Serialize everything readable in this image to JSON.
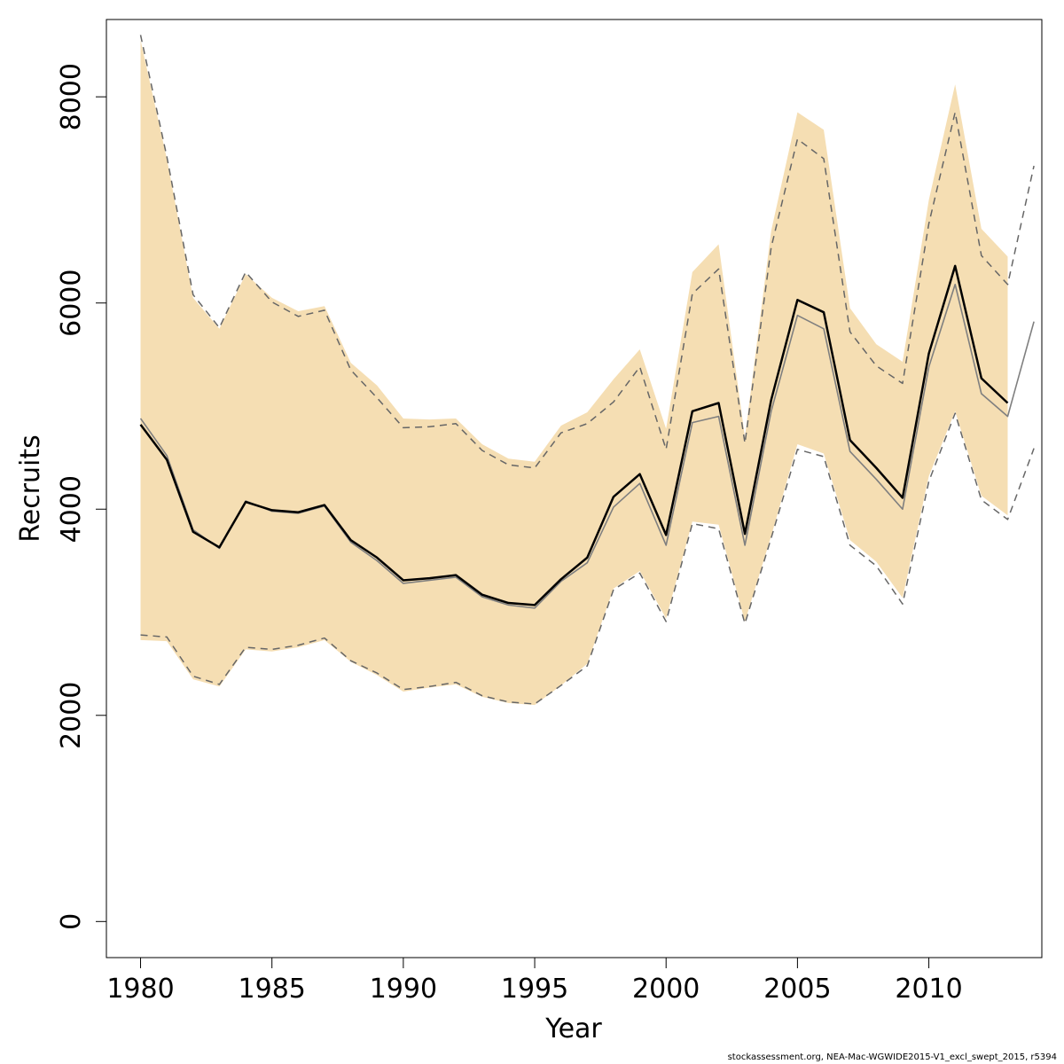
{
  "chart_data": {
    "type": "line",
    "title": "",
    "xlabel": "Year",
    "ylabel": "Recruits",
    "xlim": [
      1978.7,
      2014.3
    ],
    "ylim": [
      -350,
      8750
    ],
    "x_ticks": [
      1980,
      1985,
      1990,
      1995,
      2000,
      2005,
      2010
    ],
    "y_ticks": [
      0,
      2000,
      4000,
      6000,
      8000
    ],
    "grid": false,
    "legend": "none",
    "colors": {
      "band": "#f5deb3",
      "estimate": "#000000",
      "previous": "#7f7f7f",
      "previous_ci": "#666666"
    },
    "band": {
      "x": [
        1980,
        1981,
        1982,
        1983,
        1984,
        1985,
        1986,
        1987,
        1988,
        1989,
        1990,
        1991,
        1992,
        1993,
        1994,
        1995,
        1996,
        1997,
        1998,
        1999,
        2000,
        2001,
        2002,
        2003,
        2004,
        2005,
        2006,
        2007,
        2008,
        2009,
        2010,
        2011,
        2012,
        2013
      ],
      "lower": [
        2730,
        2720,
        2350,
        2280,
        2640,
        2620,
        2660,
        2730,
        2520,
        2390,
        2230,
        2270,
        2300,
        2180,
        2120,
        2100,
        2290,
        2500,
        3230,
        3400,
        2940,
        3880,
        3850,
        2910,
        3740,
        4630,
        4540,
        3700,
        3490,
        3140,
        4320,
        4950,
        4130,
        3940
      ],
      "upper": [
        8550,
        7400,
        6050,
        5750,
        6280,
        6050,
        5920,
        5970,
        5420,
        5200,
        4880,
        4870,
        4880,
        4630,
        4490,
        4460,
        4810,
        4940,
        5260,
        5550,
        4780,
        6300,
        6570,
        4700,
        6700,
        7850,
        7680,
        5950,
        5600,
        5430,
        7000,
        8120,
        6720,
        6450
      ]
    },
    "series": [
      {
        "x": [
          1980,
          1981,
          1982,
          1983,
          1984,
          1985,
          1986,
          1987,
          1988,
          1989,
          1990,
          1991,
          1992,
          1993,
          1994,
          1995,
          1996,
          1997,
          1998,
          1999,
          2000,
          2001,
          2002,
          2003,
          2004,
          2005,
          2006,
          2007,
          2008,
          2009,
          2010,
          2011,
          2012,
          2013
        ],
        "values": [
          4820,
          4480,
          3780,
          3630,
          4070,
          3990,
          3970,
          4040,
          3700,
          3530,
          3310,
          3330,
          3360,
          3170,
          3090,
          3070,
          3320,
          3530,
          4120,
          4340,
          3750,
          4950,
          5030,
          3760,
          5060,
          6030,
          5910,
          4670,
          4400,
          4110,
          5510,
          6360,
          5270,
          5030
        ]
      },
      {
        "x": [
          1980,
          1981,
          1982,
          1983,
          1984,
          1985,
          1986,
          1987,
          1988,
          1989,
          1990,
          1991,
          1992,
          1993,
          1994,
          1995,
          1996,
          1997,
          1998,
          1999,
          2000,
          2001,
          2002,
          2003,
          2004,
          2005,
          2006,
          2007,
          2008,
          2009,
          2010,
          2011,
          2012,
          2013,
          2014
        ],
        "values": [
          4880,
          4520,
          3800,
          3620,
          4080,
          3980,
          3960,
          4030,
          3680,
          3500,
          3280,
          3310,
          3340,
          3150,
          3070,
          3040,
          3300,
          3480,
          4020,
          4250,
          3650,
          4840,
          4900,
          3650,
          4950,
          5880,
          5750,
          4560,
          4290,
          4000,
          5380,
          6180,
          5120,
          4900,
          5820
        ]
      },
      {
        "x": [
          1980,
          1981,
          1982,
          1983,
          1984,
          1985,
          1986,
          1987,
          1988,
          1989,
          1990,
          1991,
          1992,
          1993,
          1994,
          1995,
          1996,
          1997,
          1998,
          1999,
          2000,
          2001,
          2002,
          2003,
          2004,
          2005,
          2006,
          2007,
          2008,
          2009,
          2010,
          2011,
          2012,
          2013,
          2014
        ],
        "values": [
          2780,
          2760,
          2380,
          2300,
          2660,
          2640,
          2680,
          2750,
          2530,
          2410,
          2250,
          2280,
          2320,
          2190,
          2130,
          2110,
          2290,
          2480,
          3220,
          3380,
          2910,
          3860,
          3810,
          2890,
          3720,
          4580,
          4510,
          3650,
          3450,
          3080,
          4270,
          4930,
          4090,
          3900,
          4590
        ]
      },
      {
        "x": [
          1980,
          1981,
          1982,
          1983,
          1984,
          1985,
          1986,
          1987,
          1988,
          1989,
          1990,
          1991,
          1992,
          1993,
          1994,
          1995,
          1996,
          1997,
          1998,
          1999,
          2000,
          2001,
          2002,
          2003,
          2004,
          2005,
          2006,
          2007,
          2008,
          2009,
          2010,
          2011,
          2012,
          2013,
          2014
        ],
        "values": [
          8600,
          7420,
          6080,
          5760,
          6300,
          6010,
          5870,
          5930,
          5350,
          5080,
          4790,
          4800,
          4830,
          4570,
          4430,
          4400,
          4740,
          4830,
          5040,
          5380,
          4580,
          6090,
          6330,
          4640,
          6540,
          7590,
          7400,
          5720,
          5390,
          5220,
          6770,
          7850,
          6460,
          6180,
          7330
        ]
      }
    ]
  },
  "footer": {
    "text": "stockassessment.org, NEA-Mac-WGWIDE2015-V1_excl_swept_2015, r5394"
  }
}
